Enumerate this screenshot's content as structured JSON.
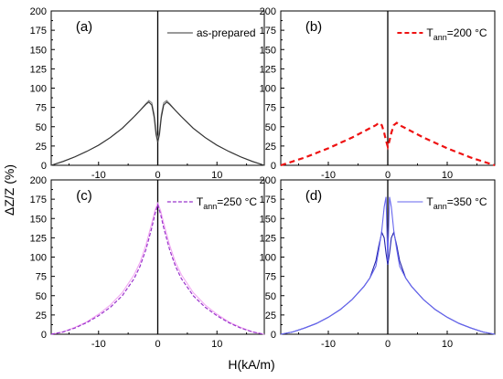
{
  "figure": {
    "ylabel": "ΔZ/Z (%)",
    "xlabel": "H(kA/m)"
  },
  "chart_data": [
    {
      "type": "line",
      "panel": "(a)",
      "xlim": [
        -18,
        18
      ],
      "ylim": [
        0,
        200
      ],
      "xticks": [
        -10,
        0,
        10
      ],
      "yticks": [
        0,
        25,
        50,
        75,
        100,
        125,
        150,
        175,
        200
      ],
      "legend_position": "top-right",
      "series": [
        {
          "name": "as-prepared",
          "color": "#333333",
          "style": "solid",
          "x": [
            -18,
            -16,
            -14,
            -12,
            -10,
            -8,
            -6,
            -4,
            -3,
            -2,
            -1.5,
            -1,
            -0.6,
            -0.3,
            0,
            0.3,
            0.6,
            1,
            1.5,
            2,
            3,
            4,
            6,
            8,
            10,
            12,
            14,
            16,
            18
          ],
          "y": [
            0,
            5,
            11,
            18,
            26,
            36,
            48,
            63,
            71,
            79,
            82,
            78,
            62,
            40,
            30,
            40,
            62,
            78,
            82,
            79,
            71,
            63,
            48,
            36,
            26,
            18,
            11,
            5,
            0
          ]
        },
        {
          "name": "",
          "color": "#888888",
          "style": "solid",
          "x": [
            -18,
            -16,
            -14,
            -12,
            -10,
            -8,
            -6,
            -4,
            -3,
            -2,
            -1.5,
            -1,
            -0.6,
            -0.3,
            0,
            0.3,
            0.6,
            1,
            1.5,
            2,
            3,
            4,
            6,
            8,
            10,
            12,
            14,
            16,
            18
          ],
          "y": [
            0,
            5,
            11,
            18,
            26,
            36,
            48,
            63,
            71,
            80,
            84,
            81,
            66,
            45,
            34,
            45,
            66,
            81,
            84,
            80,
            71,
            63,
            48,
            36,
            26,
            18,
            11,
            5,
            0
          ]
        }
      ]
    },
    {
      "type": "line",
      "panel": "(b)",
      "xlim": [
        -18,
        18
      ],
      "ylim": [
        0,
        200
      ],
      "xticks": [
        -10,
        0,
        10
      ],
      "yticks": [
        0,
        25,
        50,
        75,
        100,
        125,
        150,
        175,
        200
      ],
      "legend_position": "top-right",
      "legend_label_main": "T",
      "legend_label_sub": "ann",
      "legend_label_rest": "=200 °C",
      "series": [
        {
          "name": "T_ann=200 °C",
          "color": "#ee1111",
          "style": "dashed",
          "x": [
            -18,
            -16,
            -14,
            -12,
            -10,
            -8,
            -6,
            -4,
            -3,
            -2,
            -1.5,
            -1,
            -0.6,
            -0.3,
            0,
            0.3,
            0.6,
            1,
            1.5,
            2,
            3,
            4,
            6,
            8,
            10,
            12,
            14,
            16,
            18
          ],
          "y": [
            0,
            5,
            10,
            16,
            22,
            29,
            36,
            44,
            48,
            52,
            55,
            52,
            42,
            32,
            24,
            32,
            42,
            52,
            55,
            52,
            48,
            44,
            36,
            29,
            22,
            16,
            10,
            5,
            0
          ]
        }
      ]
    },
    {
      "type": "line",
      "panel": "(c)",
      "xlim": [
        -18,
        18
      ],
      "ylim": [
        0,
        200
      ],
      "xticks": [
        -10,
        0,
        10
      ],
      "yticks": [
        0,
        25,
        50,
        75,
        100,
        125,
        150,
        175,
        200
      ],
      "legend_position": "top-right",
      "legend_label_main": "T",
      "legend_label_sub": "ann",
      "legend_label_rest": "=250 °C",
      "series": [
        {
          "name": "T_ann=250 °C",
          "color": "#9933cc",
          "style": "dashed",
          "x": [
            -18,
            -16,
            -14,
            -12,
            -10,
            -8,
            -6,
            -4,
            -3,
            -2,
            -1,
            -0.5,
            0,
            0.5,
            1,
            2,
            3,
            4,
            6,
            8,
            10,
            12,
            14,
            16,
            18
          ],
          "y": [
            0,
            3,
            8,
            15,
            24,
            35,
            50,
            72,
            88,
            110,
            138,
            155,
            168,
            155,
            138,
            110,
            88,
            72,
            50,
            35,
            24,
            15,
            8,
            3,
            0
          ]
        },
        {
          "name": "",
          "color": "#f2a6f2",
          "style": "solid",
          "x": [
            -18,
            -16,
            -14,
            -12,
            -10,
            -8,
            -6,
            -4,
            -3,
            -2,
            -1,
            -0.5,
            0,
            0.5,
            1,
            2,
            3,
            4,
            6,
            8,
            10,
            12,
            14,
            16,
            18
          ],
          "y": [
            0,
            3,
            9,
            16,
            26,
            38,
            54,
            77,
            93,
            116,
            144,
            160,
            170,
            160,
            144,
            116,
            93,
            77,
            54,
            38,
            26,
            16,
            9,
            3,
            0
          ]
        }
      ]
    },
    {
      "type": "line",
      "panel": "(d)",
      "xlim": [
        -18,
        18
      ],
      "ylim": [
        0,
        200
      ],
      "xticks": [
        -10,
        0,
        10
      ],
      "yticks": [
        0,
        25,
        50,
        75,
        100,
        125,
        150,
        175,
        200
      ],
      "legend_position": "top-right",
      "legend_label_main": "T",
      "legend_label_sub": "ann",
      "legend_label_rest": "=350 °C",
      "series": [
        {
          "name": "T_ann=350 °C",
          "color": "#6666ee",
          "style": "solid",
          "x": [
            -18,
            -16,
            -14,
            -12,
            -10,
            -8,
            -6,
            -4,
            -3,
            -2,
            -1.5,
            -1,
            -0.6,
            -0.3,
            0,
            0.3,
            0.6,
            1,
            1.5,
            2,
            3,
            4,
            6,
            8,
            10,
            12,
            14,
            16,
            18
          ],
          "y": [
            0,
            3,
            8,
            14,
            22,
            32,
            45,
            62,
            73,
            88,
            110,
            135,
            165,
            178,
            95,
            178,
            165,
            135,
            110,
            88,
            73,
            62,
            45,
            32,
            22,
            14,
            8,
            3,
            0
          ]
        },
        {
          "name": "",
          "color": "#2222aa",
          "style": "solid",
          "x": [
            -18,
            -16,
            -14,
            -12,
            -10,
            -8,
            -6,
            -4,
            -3,
            -2,
            -1.5,
            -1,
            -0.6,
            -0.3,
            0,
            0.3,
            0.6,
            1,
            1.5,
            2,
            3,
            4,
            6,
            8,
            10,
            12,
            14,
            16,
            18
          ],
          "y": [
            0,
            3,
            8,
            14,
            22,
            32,
            45,
            62,
            73,
            95,
            115,
            132,
            125,
            105,
            90,
            105,
            125,
            132,
            115,
            95,
            73,
            62,
            45,
            32,
            22,
            14,
            8,
            3,
            0
          ]
        }
      ]
    }
  ]
}
